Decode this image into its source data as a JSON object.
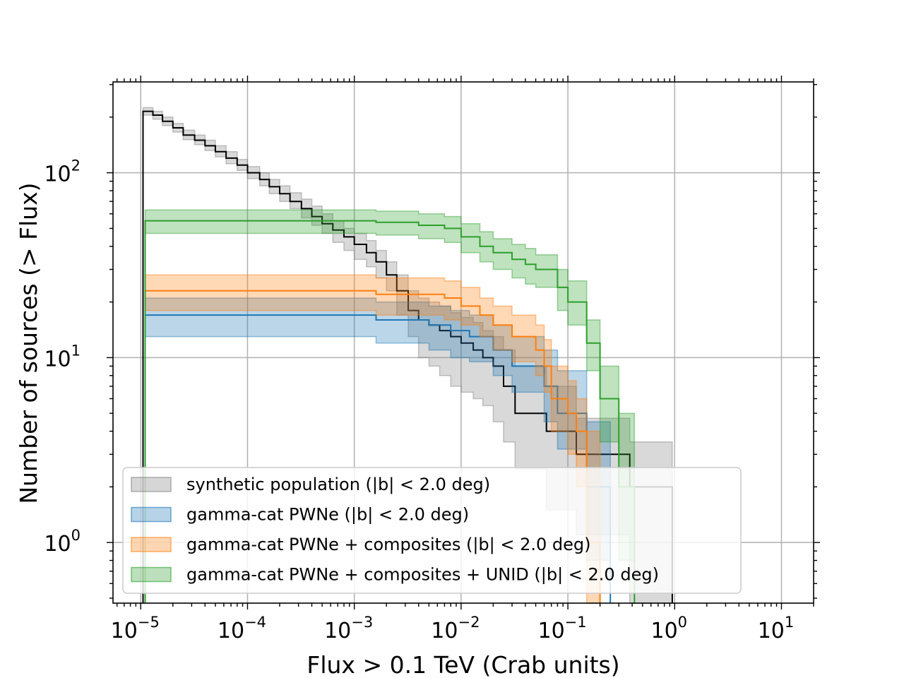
{
  "chart_data": {
    "type": "line",
    "step": true,
    "x_scale": "log",
    "y_scale": "log",
    "xlim": [
      5.5e-06,
      20
    ],
    "ylim": [
      0.47,
      310
    ],
    "xlabel": "Flux > 0.1 TeV (Crab units)",
    "ylabel": "Number of sources (> Flux)",
    "x_ticks": [
      {
        "base": "10",
        "exp": "−5",
        "value": 1e-05
      },
      {
        "base": "10",
        "exp": "−4",
        "value": 0.0001
      },
      {
        "base": "10",
        "exp": "−3",
        "value": 0.001
      },
      {
        "base": "10",
        "exp": "−2",
        "value": 0.01
      },
      {
        "base": "10",
        "exp": "−1",
        "value": 0.1
      },
      {
        "base": "10",
        "exp": "0",
        "value": 1
      },
      {
        "base": "10",
        "exp": "1",
        "value": 10
      }
    ],
    "y_ticks": [
      {
        "base": "10",
        "exp": "0",
        "value": 1
      },
      {
        "base": "10",
        "exp": "1",
        "value": 10
      },
      {
        "base": "10",
        "exp": "2",
        "value": 100
      }
    ],
    "grid": true,
    "legend_position": "lower-left",
    "series": [
      {
        "name": "synthetic population (|b| < 2.0 deg)",
        "color": "#000000",
        "band_color": "#808080",
        "x": [
          1.05e-05,
          1.3e-05,
          1.6e-05,
          2e-05,
          2.5e-05,
          3.2e-05,
          4e-05,
          5e-05,
          6.3e-05,
          8e-05,
          0.0001,
          0.00013,
          0.00016,
          0.0002,
          0.00025,
          0.00032,
          0.0004,
          0.0005,
          0.00063,
          0.0008,
          0.001,
          0.0013,
          0.0016,
          0.002,
          0.0025,
          0.0032,
          0.004,
          0.005,
          0.0063,
          0.008,
          0.01,
          0.013,
          0.016,
          0.02,
          0.025,
          0.032,
          0.063,
          0.12,
          0.38,
          0.65,
          0.95
        ],
        "y": [
          215,
          205,
          190,
          175,
          160,
          150,
          140,
          130,
          120,
          110,
          100,
          92,
          84,
          77,
          70,
          64,
          58,
          53,
          49,
          45,
          41,
          37,
          33,
          28,
          23,
          18,
          16,
          15,
          14,
          13,
          12,
          11,
          10,
          9,
          7,
          5,
          4,
          3,
          2,
          2,
          0.47
        ],
        "band_low": [
          205,
          195,
          180,
          166,
          151,
          142,
          132,
          122,
          112,
          103,
          93,
          85,
          77,
          70,
          64,
          57,
          52,
          47,
          42,
          38,
          34,
          31,
          27,
          23,
          17,
          13,
          10,
          9,
          8,
          7,
          6.5,
          6,
          5.5,
          4.5,
          3.5,
          2.5,
          1.5,
          1.1,
          0.47,
          0.47,
          0.47
        ],
        "band_high": [
          225,
          215,
          200,
          185,
          170,
          160,
          150,
          140,
          130,
          118,
          108,
          100,
          92,
          85,
          78,
          72,
          66,
          60,
          55,
          50,
          47,
          43,
          38,
          33,
          28,
          23,
          21,
          20,
          19,
          17.5,
          16.5,
          15.5,
          14,
          13,
          11,
          9,
          7,
          4.7,
          3.5,
          3.5,
          3.5
        ]
      },
      {
        "name": "gamma-cat PWNe (|b| < 2.0 deg)",
        "color": "#1f77b4",
        "band_color": "#1f77b4",
        "x": [
          1.1e-05,
          0.0016,
          0.005,
          0.008,
          0.012,
          0.02,
          0.03,
          0.06,
          0.08,
          0.15,
          0.25
        ],
        "y": [
          17,
          16,
          15,
          14,
          13,
          11,
          9,
          7,
          5,
          2,
          0.47
        ],
        "band_low": [
          13,
          12,
          11,
          10,
          9.5,
          8,
          6.5,
          4.5,
          3.2,
          0.8,
          0.47
        ],
        "band_high": [
          21,
          20,
          19,
          18,
          17,
          15,
          13,
          11,
          8.5,
          4.5,
          4.5
        ]
      },
      {
        "name": "gamma-cat PWNe + composites (|b| < 2.0 deg)",
        "color": "#ff7f0e",
        "band_color": "#ff7f0e",
        "x": [
          1.1e-05,
          0.0016,
          0.007,
          0.01,
          0.015,
          0.02,
          0.03,
          0.05,
          0.06,
          0.07,
          0.1,
          0.12,
          0.15,
          0.2
        ],
        "y": [
          23,
          22,
          21,
          19,
          17,
          15,
          13,
          11,
          9,
          6,
          5,
          4,
          1,
          0.47
        ],
        "band_low": [
          18,
          17,
          16,
          15,
          13,
          11,
          9.5,
          8,
          6.5,
          4,
          3,
          2,
          0.47,
          0.47
        ],
        "band_high": [
          28,
          27,
          26,
          24,
          21,
          19,
          17,
          15,
          12.5,
          9,
          7.5,
          6,
          4,
          3
        ]
      },
      {
        "name": "gamma-cat PWNe + composites + UNID (|b| < 2.0 deg)",
        "color": "#2ca02c",
        "band_color": "#2ca02c",
        "x": [
          1.1e-05,
          0.0016,
          0.004,
          0.007,
          0.01,
          0.015,
          0.02,
          0.03,
          0.04,
          0.05,
          0.08,
          0.1,
          0.15,
          0.2,
          0.3,
          0.42
        ],
        "y": [
          55,
          54,
          52,
          50,
          45,
          40,
          37,
          34,
          32,
          30,
          24,
          20,
          12,
          6,
          2,
          0.47
        ],
        "band_low": [
          47,
          46,
          44,
          42,
          37,
          33,
          30,
          27,
          25,
          24,
          18,
          15,
          8.5,
          3.5,
          0.8,
          0.47
        ],
        "band_high": [
          63,
          62,
          60,
          58,
          53,
          48,
          44,
          41,
          39,
          36,
          30,
          26,
          16,
          9,
          5,
          3
        ]
      }
    ]
  }
}
